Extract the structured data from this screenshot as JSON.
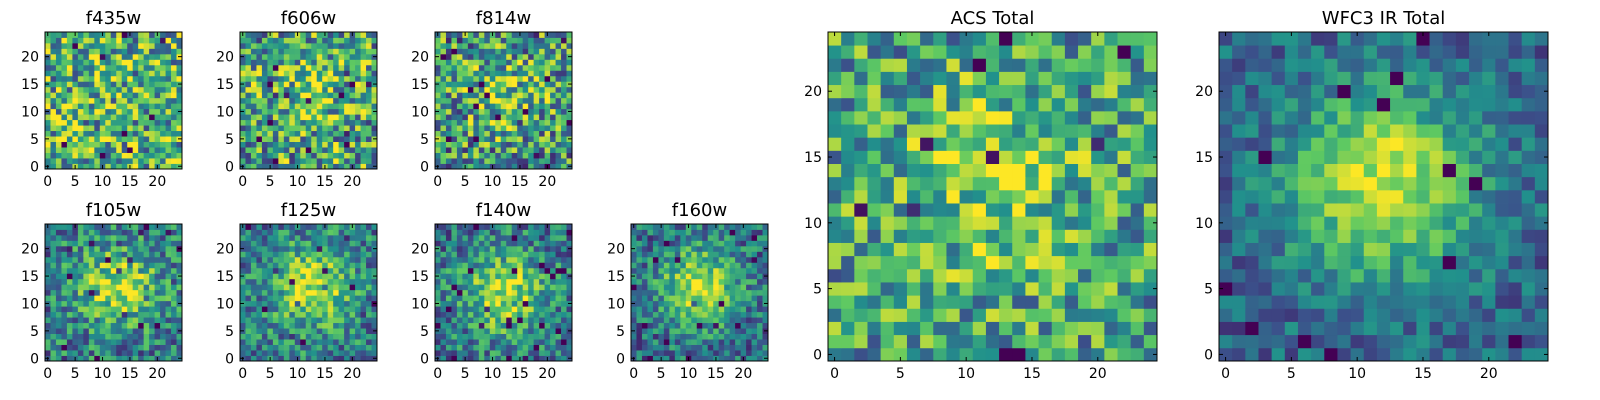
{
  "colormap": "viridis",
  "colormap_stops": [
    "#440154",
    "#3b528b",
    "#21918c",
    "#5ec962",
    "#fde725"
  ],
  "chart_data": [
    {
      "type": "heatmap",
      "title": "f435w",
      "xticks": [
        "0",
        "5",
        "10",
        "15",
        "20"
      ],
      "yticks": [
        "0",
        "5",
        "10",
        "15",
        "20"
      ],
      "xlim": [
        0,
        25
      ],
      "ylim": [
        0,
        25
      ],
      "grid_size": 25,
      "source_center": null,
      "source_strength": 0.0,
      "noise": 0.42,
      "base": 0.64,
      "seed": 11
    },
    {
      "type": "heatmap",
      "title": "f606w",
      "xticks": [
        "0",
        "5",
        "10",
        "15",
        "20"
      ],
      "yticks": [
        "0",
        "5",
        "10",
        "15",
        "20"
      ],
      "xlim": [
        0,
        25
      ],
      "ylim": [
        0,
        25
      ],
      "grid_size": 25,
      "source_center": [
        12,
        13
      ],
      "source_strength": 0.18,
      "noise": 0.42,
      "base": 0.58,
      "seed": 23
    },
    {
      "type": "heatmap",
      "title": "f814w",
      "xticks": [
        "0",
        "5",
        "10",
        "15",
        "20"
      ],
      "yticks": [
        "0",
        "5",
        "10",
        "15",
        "20"
      ],
      "xlim": [
        0,
        25
      ],
      "ylim": [
        0,
        25
      ],
      "grid_size": 25,
      "source_center": [
        12,
        13
      ],
      "source_strength": 0.25,
      "noise": 0.42,
      "base": 0.52,
      "seed": 37
    },
    {
      "type": "heatmap",
      "title": "f105w",
      "xticks": [
        "0",
        "5",
        "10",
        "15",
        "20"
      ],
      "yticks": [
        "0",
        "5",
        "10",
        "15",
        "20"
      ],
      "xlim": [
        0,
        25
      ],
      "ylim": [
        0,
        25
      ],
      "grid_size": 25,
      "source_center": [
        13,
        13
      ],
      "source_strength": 0.45,
      "noise": 0.3,
      "base": 0.42,
      "seed": 41
    },
    {
      "type": "heatmap",
      "title": "f125w",
      "xticks": [
        "0",
        "5",
        "10",
        "15",
        "20"
      ],
      "yticks": [
        "0",
        "5",
        "10",
        "15",
        "20"
      ],
      "xlim": [
        0,
        25
      ],
      "ylim": [
        0,
        25
      ],
      "grid_size": 25,
      "source_center": [
        13,
        13
      ],
      "source_strength": 0.5,
      "noise": 0.28,
      "base": 0.42,
      "seed": 53
    },
    {
      "type": "heatmap",
      "title": "f140w",
      "xticks": [
        "0",
        "5",
        "10",
        "15",
        "20"
      ],
      "yticks": [
        "0",
        "5",
        "10",
        "15",
        "20"
      ],
      "xlim": [
        0,
        25
      ],
      "ylim": [
        0,
        25
      ],
      "grid_size": 25,
      "source_center": [
        12,
        12
      ],
      "source_strength": 0.5,
      "noise": 0.28,
      "base": 0.4,
      "seed": 67
    },
    {
      "type": "heatmap",
      "title": "f160w",
      "xticks": [
        "0",
        "5",
        "10",
        "15",
        "20"
      ],
      "yticks": [
        "0",
        "5",
        "10",
        "15",
        "20"
      ],
      "xlim": [
        0,
        25
      ],
      "ylim": [
        0,
        25
      ],
      "grid_size": 25,
      "source_center": [
        12,
        13
      ],
      "source_strength": 0.55,
      "noise": 0.26,
      "base": 0.36,
      "seed": 79
    },
    {
      "type": "heatmap",
      "title": "ACS Total",
      "xticks": [
        "0",
        "5",
        "10",
        "15",
        "20"
      ],
      "yticks": [
        "0",
        "5",
        "10",
        "15",
        "20"
      ],
      "xlim": [
        0,
        25
      ],
      "ylim": [
        0,
        25
      ],
      "grid_size": 25,
      "source_center": [
        12,
        13
      ],
      "source_strength": 0.25,
      "noise": 0.34,
      "base": 0.56,
      "seed": 97
    },
    {
      "type": "heatmap",
      "title": "WFC3 IR Total",
      "xticks": [
        "0",
        "5",
        "10",
        "15",
        "20"
      ],
      "yticks": [
        "0",
        "5",
        "10",
        "15",
        "20"
      ],
      "xlim": [
        0,
        25
      ],
      "ylim": [
        0,
        25
      ],
      "grid_size": 25,
      "source_center": [
        12,
        13
      ],
      "source_strength": 0.62,
      "noise": 0.18,
      "base": 0.32,
      "seed": 113
    }
  ]
}
